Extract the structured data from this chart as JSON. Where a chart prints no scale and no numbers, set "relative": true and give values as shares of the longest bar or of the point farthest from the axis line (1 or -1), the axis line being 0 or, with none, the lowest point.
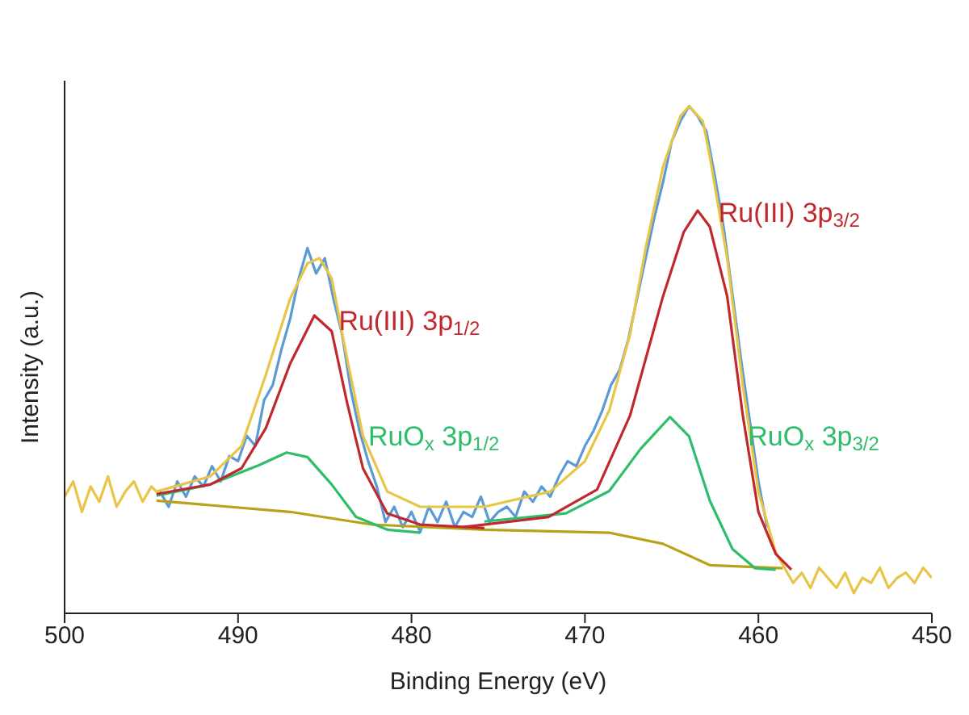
{
  "chart_data": {
    "type": "line",
    "xlabel": "Binding Energy (eV)",
    "ylabel": "Intensity (a.u.)",
    "relative": true,
    "xlim": [
      500,
      450
    ],
    "xticks": [
      500,
      490,
      480,
      470,
      460,
      450
    ],
    "grid": false,
    "series": [
      {
        "type": "line",
        "color": "#5b9bd5",
        "x": [
          494.5,
          494,
          493.5,
          493,
          492.5,
          492,
          491.5,
          491,
          490.5,
          490,
          489.5,
          489,
          488.5,
          488,
          487.5,
          487,
          486.5,
          486,
          485.5,
          485,
          484.5,
          484,
          483.5,
          483,
          482.5,
          482,
          481.5,
          481,
          480.5,
          480,
          479.5,
          479,
          478.5,
          478,
          477.5,
          477,
          476.5,
          476,
          475.5,
          475,
          474.5,
          474,
          473.5,
          473,
          472.5,
          472,
          471.5,
          471,
          470.5,
          470,
          469.5,
          469,
          468.5,
          468,
          467.5,
          467,
          466.5,
          466,
          465.5,
          465,
          464.5,
          464,
          463.5,
          463,
          462.5,
          462,
          461.5,
          461,
          460.5,
          460,
          459.5
        ],
        "values": [
          0.24,
          0.21,
          0.26,
          0.23,
          0.27,
          0.25,
          0.29,
          0.26,
          0.31,
          0.3,
          0.35,
          0.33,
          0.42,
          0.45,
          0.52,
          0.58,
          0.66,
          0.72,
          0.67,
          0.7,
          0.62,
          0.55,
          0.44,
          0.36,
          0.3,
          0.25,
          0.18,
          0.21,
          0.17,
          0.2,
          0.16,
          0.21,
          0.18,
          0.22,
          0.17,
          0.2,
          0.19,
          0.23,
          0.18,
          0.2,
          0.21,
          0.19,
          0.24,
          0.22,
          0.25,
          0.23,
          0.27,
          0.3,
          0.29,
          0.33,
          0.36,
          0.4,
          0.45,
          0.48,
          0.54,
          0.62,
          0.7,
          0.78,
          0.85,
          0.93,
          0.97,
          1.0,
          0.98,
          0.95,
          0.86,
          0.76,
          0.63,
          0.5,
          0.38,
          0.26,
          0.17
        ]
      },
      {
        "type": "line",
        "color": "#e8c547",
        "x": [
          500,
          499.5,
          499,
          498.5,
          498,
          497.5,
          497,
          496.5,
          496,
          495.5,
          495,
          494.7,
          491.6,
          489.8,
          488.4,
          487,
          486,
          485.3,
          484.6,
          483.7,
          482.8,
          481.4,
          479.5,
          475.8,
          472,
          470,
          468.6,
          467.4,
          466.5,
          465.5,
          464.5,
          464,
          463.2,
          462.8,
          461.8,
          460.9,
          460,
          459,
          458.5,
          458,
          457.5,
          457,
          456.5,
          456,
          455.5,
          455,
          454.5,
          454,
          453.5,
          453,
          452.5,
          452,
          451.5,
          451,
          450.5,
          450
        ],
        "values": [
          0.23,
          0.26,
          0.2,
          0.25,
          0.22,
          0.27,
          0.21,
          0.24,
          0.26,
          0.22,
          0.25,
          0.24,
          0.27,
          0.33,
          0.47,
          0.62,
          0.69,
          0.7,
          0.66,
          0.5,
          0.35,
          0.24,
          0.21,
          0.21,
          0.24,
          0.3,
          0.4,
          0.55,
          0.72,
          0.88,
          0.98,
          1.0,
          0.97,
          0.9,
          0.7,
          0.45,
          0.24,
          0.12,
          0.09,
          0.06,
          0.08,
          0.05,
          0.09,
          0.07,
          0.05,
          0.08,
          0.04,
          0.07,
          0.06,
          0.09,
          0.05,
          0.07,
          0.08,
          0.06,
          0.09,
          0.07
        ]
      },
      {
        "type": "line",
        "color": "#b8a21a",
        "x": [
          494.7,
          487,
          482.3,
          475.8,
          468.6,
          465.5,
          462.8,
          458.6
        ],
        "values": [
          0.222,
          0.2,
          0.175,
          0.165,
          0.159,
          0.137,
          0.095,
          0.089
        ]
      },
      {
        "type": "line",
        "color": "#2ebd6b",
        "x": [
          494.7,
          491.6,
          488.8,
          487.2,
          486,
          484.6,
          483.2,
          481.4,
          479.5
        ],
        "values": [
          0.232,
          0.254,
          0.292,
          0.317,
          0.308,
          0.254,
          0.19,
          0.165,
          0.159
        ]
      },
      {
        "type": "line",
        "color": "#2ebd6b",
        "x": [
          475.8,
          471.1,
          468.6,
          466.8,
          465.1,
          464,
          462.8,
          461.5,
          460.2,
          459
        ],
        "values": [
          0.181,
          0.197,
          0.241,
          0.324,
          0.387,
          0.349,
          0.222,
          0.127,
          0.089,
          0.086
        ]
      },
      {
        "type": "line",
        "color": "#c0282d",
        "x": [
          494.7,
          491.6,
          489.8,
          488.4,
          487,
          485.6,
          484.6,
          483.7,
          482.8,
          481.4,
          479.5,
          475.8
        ],
        "values": [
          0.235,
          0.254,
          0.286,
          0.365,
          0.492,
          0.587,
          0.556,
          0.413,
          0.286,
          0.197,
          0.175,
          0.168
        ]
      },
      {
        "type": "line",
        "color": "#c0282d",
        "x": [
          477,
          472.1,
          469.3,
          467.4,
          465.5,
          464.3,
          463.5,
          462.8,
          461.8,
          460.9,
          460,
          459,
          458.1
        ],
        "values": [
          0.17,
          0.19,
          0.244,
          0.39,
          0.625,
          0.752,
          0.794,
          0.762,
          0.625,
          0.39,
          0.2,
          0.117,
          0.086
        ]
      }
    ],
    "annotations": [
      {
        "text": "Ru(III) 3p$_{1/2}$",
        "x": 484.2,
        "y": 0.571
      },
      {
        "text": "RuO$_{x}$ 3p$_{1/2}$",
        "x": 482.5,
        "y": 0.343
      },
      {
        "text": "Ru(III) 3p$_{3/2}$",
        "x": 462.3,
        "y": 0.784
      },
      {
        "text": "RuO$_{x}$ 3p$_{3/2}$",
        "x": 460.6,
        "y": 0.343
      }
    ]
  }
}
